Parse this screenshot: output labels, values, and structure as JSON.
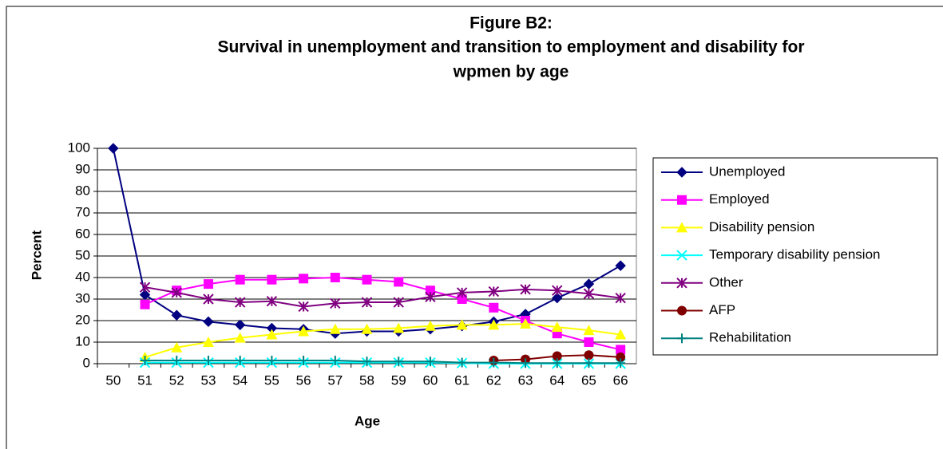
{
  "chart_data": {
    "type": "line",
    "title": "Figure B2:",
    "subtitle": [
      "Survival in unemployment and transition to employment and disability for",
      "wpmen by age"
    ],
    "x_label": "Age",
    "y_label": "Percent",
    "categories": [
      "50",
      "51",
      "52",
      "53",
      "54",
      "55",
      "56",
      "57",
      "58",
      "59",
      "60",
      "61",
      "62",
      "63",
      "64",
      "65",
      "66"
    ],
    "ylim": [
      0,
      100
    ],
    "yticks": [
      0,
      10,
      20,
      30,
      40,
      50,
      60,
      70,
      80,
      90,
      100
    ],
    "grid": true,
    "legend": "right",
    "series": [
      {
        "name": "Unemployed",
        "color": "#000080",
        "marker": "diamond",
        "values": [
          100,
          32,
          22.5,
          19.5,
          18,
          16.5,
          16,
          14,
          15,
          15,
          16,
          17.5,
          19.5,
          23,
          30.5,
          37,
          45.5
        ]
      },
      {
        "name": "Employed",
        "color": "#FF00FF",
        "marker": "square",
        "values": [
          null,
          27.5,
          34,
          37,
          39,
          39,
          39.5,
          40,
          39,
          38,
          34,
          30,
          26,
          20,
          14,
          10,
          6.5
        ]
      },
      {
        "name": "Disability pension",
        "color": "#FFFF00",
        "marker": "triangle",
        "values": [
          null,
          3,
          7.5,
          10,
          12,
          13.5,
          15,
          16,
          16,
          16.5,
          17.5,
          18,
          18,
          18.5,
          17,
          15.5,
          13.5
        ]
      },
      {
        "name": "Temporary disability pension",
        "color": "#00FFFF",
        "marker": "x",
        "values": [
          null,
          0.5,
          0.5,
          0.5,
          0.5,
          0.5,
          0.5,
          0.5,
          0.5,
          0.5,
          0.5,
          0.3,
          0,
          0,
          0,
          0,
          0
        ]
      },
      {
        "name": "Other",
        "color": "#800080",
        "marker": "asterisk",
        "values": [
          null,
          35.5,
          33,
          30,
          28.5,
          29,
          26.5,
          28,
          28.5,
          28.5,
          31,
          33,
          33.5,
          34.5,
          34,
          32.5,
          30.5
        ]
      },
      {
        "name": "AFP",
        "color": "#800000",
        "marker": "circle",
        "values": [
          null,
          null,
          null,
          null,
          null,
          null,
          null,
          null,
          null,
          null,
          null,
          null,
          1.5,
          2,
          3.5,
          4,
          3
        ]
      },
      {
        "name": "Rehabilitation",
        "color": "#008080",
        "marker": "plus",
        "values": [
          null,
          1.5,
          1.5,
          1.5,
          1.5,
          1.5,
          1.5,
          1.5,
          1,
          1,
          1,
          0.5,
          0.5,
          0.3,
          0.3,
          0.3,
          0.3
        ]
      }
    ]
  }
}
